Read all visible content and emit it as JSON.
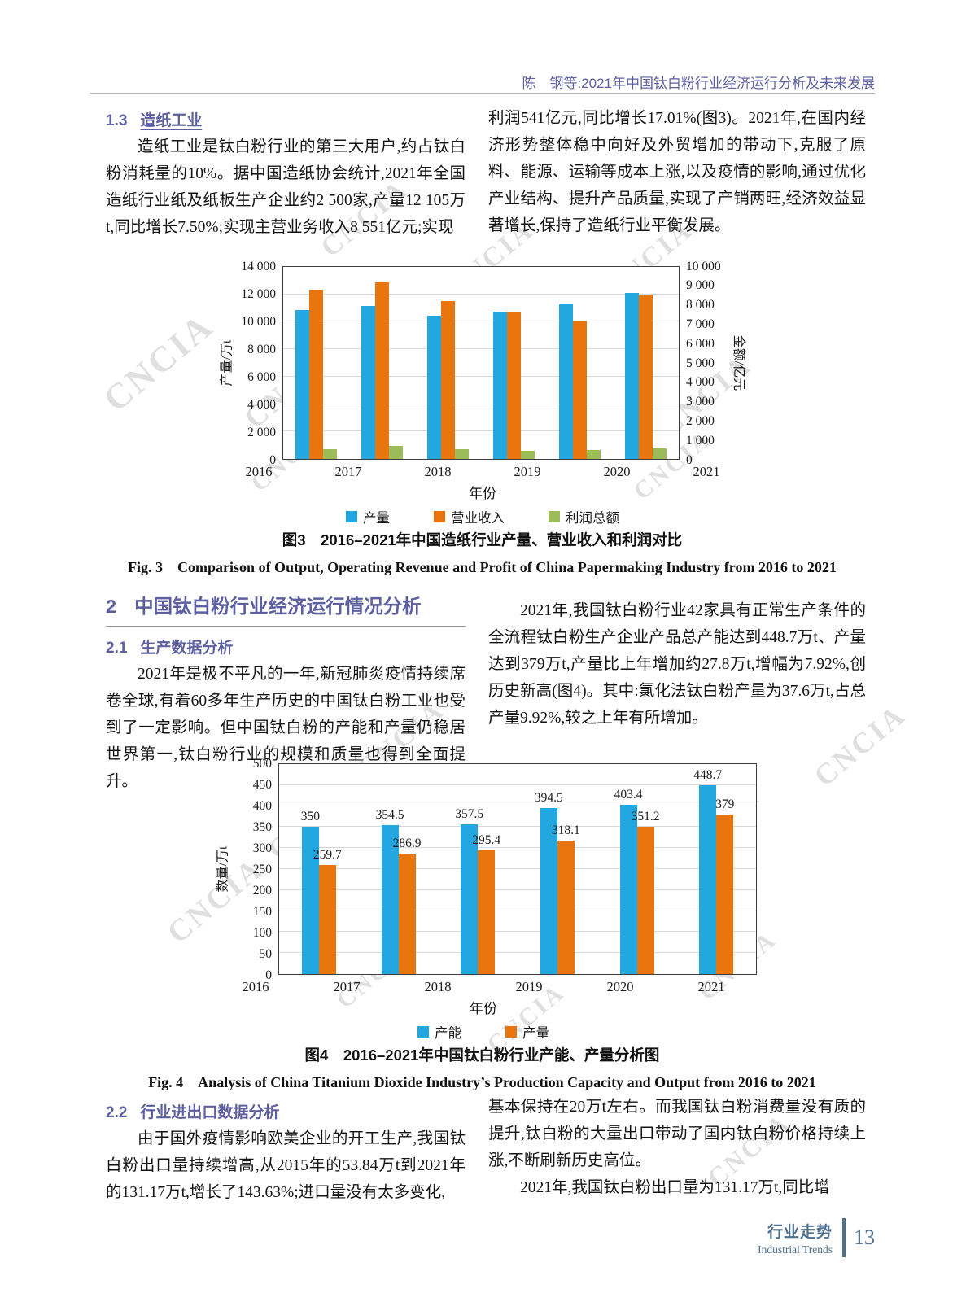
{
  "page": {
    "header": "陈　钢等:2021年中国钛白粉行业经济运行分析及未来发展",
    "watermark": "CNCIA",
    "footer": {
      "cn": "行业走势",
      "en": "Industrial Trends",
      "page_number": "13"
    }
  },
  "colors": {
    "heading_purple": "#5d5fa0",
    "footer_slate": "#4f6f8f",
    "bar_blue": "#22a7e0",
    "bar_orange": "#e8750d",
    "bar_green": "#9cbb59"
  },
  "sections": {
    "s13": {
      "num": "1.3",
      "title": "造纸工业"
    },
    "p_left1": "造纸工业是钛白粉行业的第三大用户,约占钛白粉消耗量的10%。据中国造纸协会统计,2021年全国造纸行业纸及纸板生产企业约2 500家,产量12 105万t,同比增长7.50%;实现主营业务收入8 551亿元;实现",
    "p_right1": "利润541亿元,同比增长17.01%(图3)。2021年,在国内经济形势整体稳中向好及外贸增加的带动下,克服了原料、能源、运输等成本上涨,以及疫情的影响,通过优化产业结构、提升产品质量,实现了产销两旺,经济效益显著增长,保持了造纸行业平衡发展。",
    "s2": {
      "num": "2",
      "title": "中国钛白粉行业经济运行情况分析"
    },
    "s21": {
      "num": "2.1",
      "title": "生产数据分析"
    },
    "p_left2": "2021年是极不平凡的一年,新冠肺炎疫情持续席卷全球,有着60多年生产历史的中国钛白粉工业也受到了一定影响。但中国钛白粉的产能和产量仍稳居世界第一,钛白粉行业的规模和质量也得到全面提升。",
    "p_right2": "2021年,我国钛白粉行业42家具有正常生产条件的全流程钛白粉生产企业产品总产能达到448.7万t、产量达到379万t,产量比上年增加约27.8万t,增幅为7.92%,创历史新高(图4)。其中:氯化法钛白粉产量为37.6万t,占总产量9.92%,较之上年有所增加。",
    "s22": {
      "num": "2.2",
      "title": "行业进出口数据分析"
    },
    "p_left3": "由于国外疫情影响欧美企业的开工生产,我国钛白粉出口量持续增高,从2015年的53.84万t到2021年的131.17万t,增长了143.63%;进口量没有太多变化,",
    "p_right3a": "基本保持在20万t左右。而我国钛白粉消费量没有质的提升,钛白粉的大量出口带动了国内钛白粉价格持续上涨,不断刷新历史高位。",
    "p_right3b": "2021年,我国钛白粉出口量为131.17万t,同比增"
  },
  "figure3": {
    "caption_cn": "图3　2016–2021年中国造纸行业产量、营业收入和利润对比",
    "caption_en": "Fig. 3　Comparison of Output, Operating Revenue and Profit of China Papermaking Industry from 2016 to 2021"
  },
  "figure4": {
    "caption_cn": "图4　2016–2021年中国钛白粉行业产能、产量分析图",
    "caption_en": "Fig. 4　Analysis of China Titanium Dioxide Industry’s Production Capacity and Output from 2016 to 2021"
  },
  "chart_data": [
    {
      "type": "bar",
      "title": "2016–2021年中国造纸行业产量、营业收入和利润对比",
      "categories": [
        "2016",
        "2017",
        "2018",
        "2019",
        "2020",
        "2021"
      ],
      "xlabel": "年份",
      "grid": true,
      "legend_position": "bottom",
      "data_labels": false,
      "left_axis": {
        "label": "产量/万t",
        "max": 14000,
        "ticks": [
          "0",
          "2 000",
          "4 000",
          "6 000",
          "8 000",
          "10 000",
          "12 000",
          "14 000"
        ]
      },
      "right_axis": {
        "label": "金额/亿元",
        "max": 10000,
        "ticks": [
          "0",
          "1 000",
          "2 000",
          "3 000",
          "4 000",
          "5 000",
          "6 000",
          "7 000",
          "8 000",
          "9 000",
          "10 000"
        ]
      },
      "series": [
        {
          "name": "产量",
          "axis": "left",
          "color": "#22a7e0",
          "values": [
            10855,
            11130,
            10435,
            10765,
            11260,
            12105
          ]
        },
        {
          "name": "营业收入",
          "axis": "right",
          "color": "#e8750d",
          "values": [
            8800,
            9200,
            8200,
            7650,
            7200,
            8551
          ]
        },
        {
          "name": "利润总额",
          "axis": "right",
          "color": "#9cbb59",
          "values": [
            520,
            680,
            505,
            430,
            462,
            541
          ]
        }
      ]
    },
    {
      "type": "bar",
      "title": "2016–2021年中国钛白粉行业产能、产量分析图",
      "categories": [
        "2016",
        "2017",
        "2018",
        "2019",
        "2020",
        "2021"
      ],
      "xlabel": "年份",
      "grid": true,
      "legend_position": "bottom",
      "data_labels": true,
      "left_axis": {
        "label": "数量/万t",
        "max": 500,
        "ticks": [
          "0",
          "50",
          "100",
          "150",
          "200",
          "250",
          "300",
          "350",
          "400",
          "450",
          "500"
        ]
      },
      "series": [
        {
          "name": "产能",
          "axis": "left",
          "color": "#22a7e0",
          "values": [
            350,
            354.5,
            357.5,
            394.5,
            403.4,
            448.7
          ]
        },
        {
          "name": "产量",
          "axis": "left",
          "color": "#e8750d",
          "values": [
            259.7,
            286.9,
            295.4,
            318.1,
            351.2,
            379
          ]
        }
      ]
    }
  ]
}
